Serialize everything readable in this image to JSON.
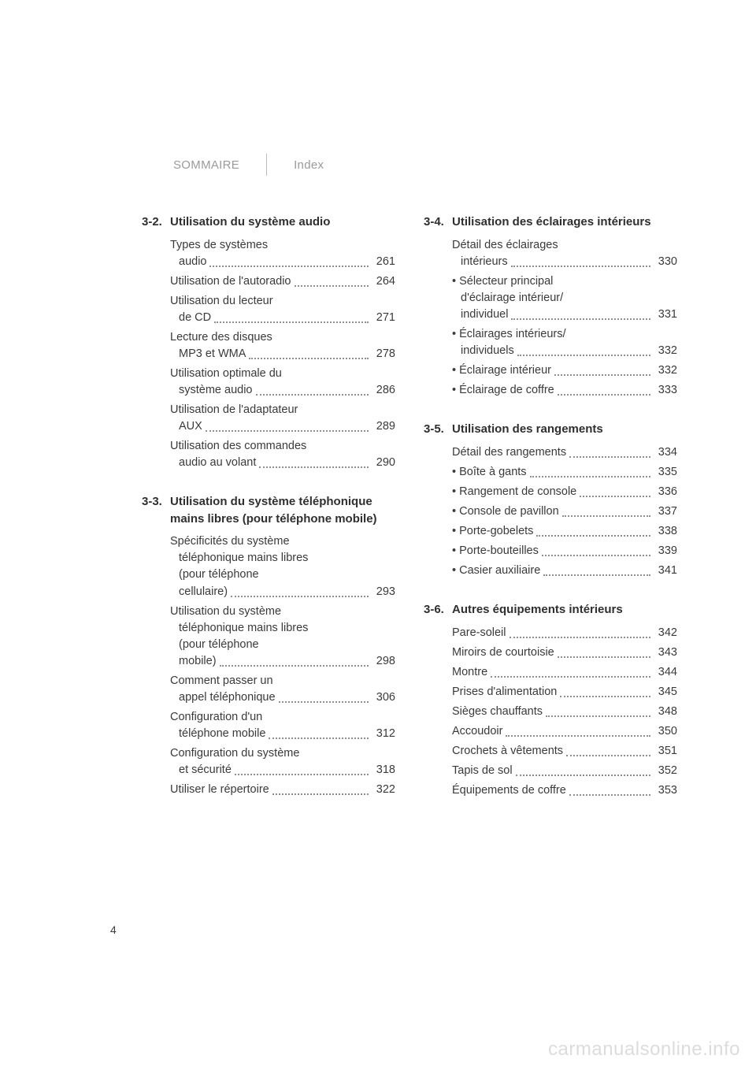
{
  "nav": {
    "sommaire": "SOMMAIRE",
    "index": "Index"
  },
  "page_number": "4",
  "watermark": "carmanualsonline.info",
  "left_sections": [
    {
      "num": "3-2.",
      "title": "Utilisation du système audio",
      "entries": [
        {
          "label": "Types de systèmes",
          "cont": "audio",
          "page": "261"
        },
        {
          "label": "Utilisation de l'autoradio",
          "page": "264"
        },
        {
          "label": "Utilisation du lecteur",
          "cont": "de CD",
          "page": "271"
        },
        {
          "label": "Lecture des disques",
          "cont": "MP3 et WMA",
          "page": "278"
        },
        {
          "label": "Utilisation optimale du",
          "cont": "système audio",
          "page": "286"
        },
        {
          "label": "Utilisation de l'adaptateur",
          "cont": "AUX",
          "page": "289"
        },
        {
          "label": "Utilisation des commandes",
          "cont": "audio au volant",
          "page": "290"
        }
      ]
    },
    {
      "num": "3-3.",
      "title": "Utilisation du système téléphonique mains libres (pour téléphone mobile)",
      "entries": [
        {
          "label": "Spécificités du système",
          "cont_lines": [
            "téléphonique mains libres",
            "(pour téléphone",
            "cellulaire)"
          ],
          "page": "293"
        },
        {
          "label": "Utilisation du système",
          "cont_lines": [
            "téléphonique mains libres",
            "(pour téléphone",
            "mobile)"
          ],
          "page": "298"
        },
        {
          "label": "Comment passer un",
          "cont": "appel téléphonique",
          "page": "306"
        },
        {
          "label": "Configuration d'un",
          "cont": "téléphone mobile",
          "page": "312"
        },
        {
          "label": "Configuration du système",
          "cont": "et sécurité",
          "page": "318"
        },
        {
          "label": "Utiliser le répertoire",
          "page": "322"
        }
      ]
    }
  ],
  "right_sections": [
    {
      "num": "3-4.",
      "title": "Utilisation des éclairages intérieurs",
      "entries": [
        {
          "label": "Détail des éclairages",
          "cont": "intérieurs",
          "page": "330"
        },
        {
          "label": "• Sélecteur principal",
          "cont_lines": [
            "d'éclairage intérieur/",
            "individuel"
          ],
          "page": "331"
        },
        {
          "label": "• Éclairages intérieurs/",
          "cont": "individuels",
          "page": "332"
        },
        {
          "label": "• Éclairage intérieur",
          "page": "332"
        },
        {
          "label": "• Éclairage de coffre",
          "page": "333"
        }
      ]
    },
    {
      "num": "3-5.",
      "title": "Utilisation des rangements",
      "entries": [
        {
          "label": "Détail des rangements",
          "page": "334"
        },
        {
          "label": "• Boîte à gants",
          "page": "335"
        },
        {
          "label": "• Rangement de console",
          "page": "336"
        },
        {
          "label": "• Console de pavillon",
          "page": "337"
        },
        {
          "label": "• Porte-gobelets",
          "page": "338"
        },
        {
          "label": "• Porte-bouteilles",
          "page": "339"
        },
        {
          "label": "• Casier auxiliaire",
          "page": "341"
        }
      ]
    },
    {
      "num": "3-6.",
      "title": "Autres équipements intérieurs",
      "entries": [
        {
          "label": "Pare-soleil",
          "page": "342"
        },
        {
          "label": "Miroirs de courtoisie",
          "page": "343"
        },
        {
          "label": "Montre",
          "page": "344"
        },
        {
          "label": "Prises d'alimentation",
          "page": "345"
        },
        {
          "label": "Sièges chauffants",
          "page": "348"
        },
        {
          "label": "Accoudoir",
          "page": "350"
        },
        {
          "label": "Crochets à vêtements",
          "page": "351"
        },
        {
          "label": "Tapis de sol",
          "page": "352"
        },
        {
          "label": "Équipements de coffre",
          "page": "353"
        }
      ]
    }
  ]
}
